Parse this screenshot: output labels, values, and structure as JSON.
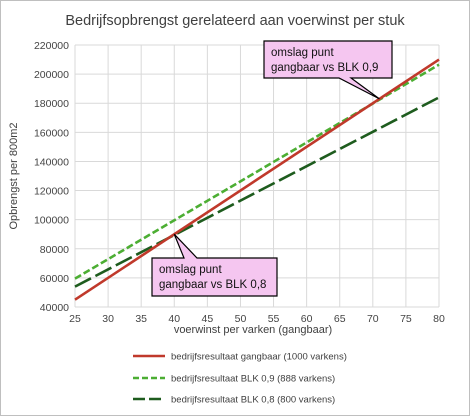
{
  "chart_data": {
    "type": "line",
    "title": "Bedrijfsopbrengst gerelateerd aan voerwinst per stuk",
    "xlabel": "voerwinst per  varken (gangbaar)",
    "ylabel": "Opbrengst per 800m2",
    "xlim": [
      25,
      80
    ],
    "ylim": [
      40000,
      220000
    ],
    "x_ticks": [
      25,
      30,
      35,
      40,
      45,
      50,
      55,
      60,
      65,
      70,
      75,
      80
    ],
    "y_ticks": [
      40000,
      60000,
      80000,
      100000,
      120000,
      140000,
      160000,
      180000,
      200000,
      220000
    ],
    "grid": true,
    "legend": "bottom",
    "series": [
      {
        "name": "bedrijfsresultaat gangbaar (1000 varkens)",
        "color": "#c0392b",
        "style": "solid",
        "x": [
          25,
          80
        ],
        "y": [
          45000,
          210000
        ]
      },
      {
        "name": "bedrijfsresultaat BLK 0,9 (888 varkens)",
        "color": "#4cae33",
        "style": "dashed",
        "x": [
          25,
          80
        ],
        "y": [
          59500,
          206500
        ]
      },
      {
        "name": "bedrijfsresultaat BLK 0,8 (800 varkens)",
        "color": "#1e5c1e",
        "style": "longdash",
        "x": [
          25,
          80
        ],
        "y": [
          54000,
          184000
        ]
      }
    ],
    "annotations": [
      {
        "line1": "omslag punt",
        "line2": "gangbaar vs BLK 0,9",
        "x": 71,
        "y": 183000
      },
      {
        "line1": "omslag punt",
        "line2": "gangbaar vs BLK 0,8",
        "x": 40,
        "y": 90000
      }
    ]
  }
}
